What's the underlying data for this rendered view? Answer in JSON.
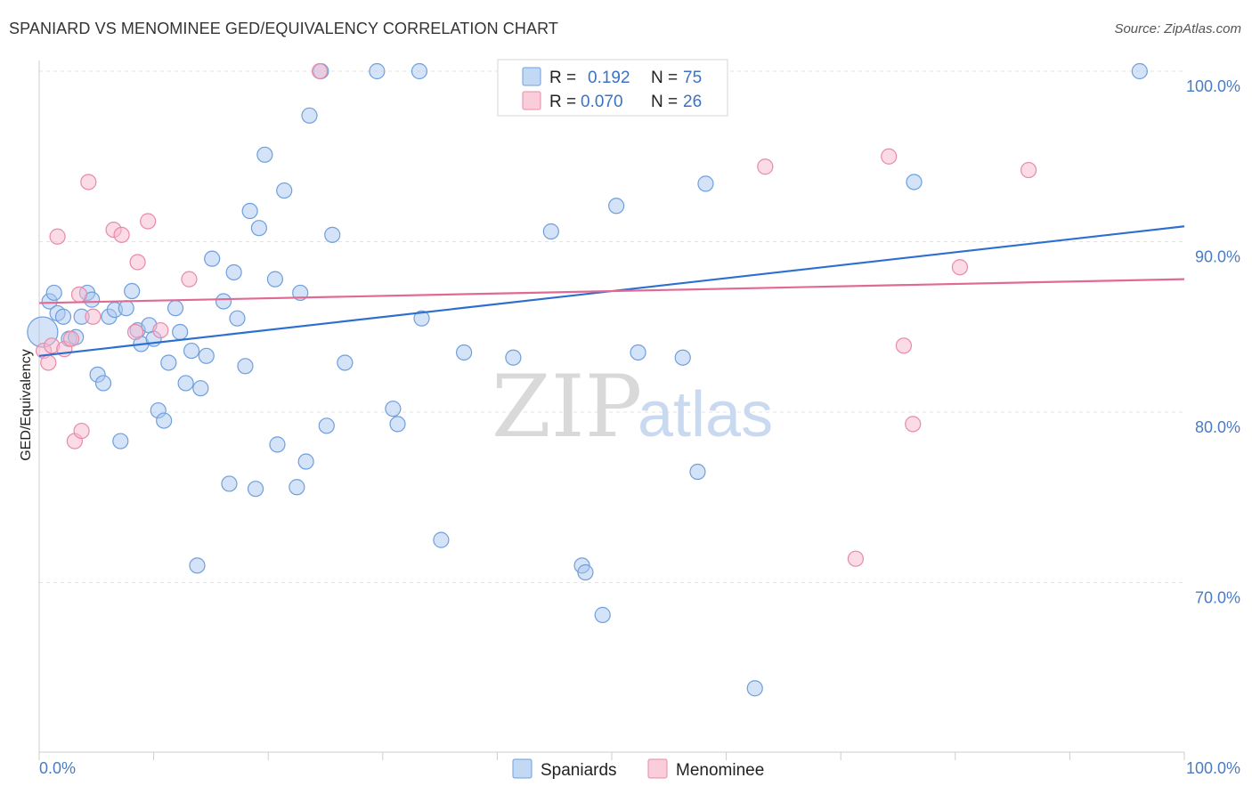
{
  "title": "SPANIARD VS MENOMINEE GED/EQUIVALENCY CORRELATION CHART",
  "source": "Source: ZipAtlas.com",
  "watermark": {
    "zip": "ZIP",
    "atlas": "atlas"
  },
  "colors": {
    "spaniards_fill": "#a9c8f0",
    "spaniards_stroke": "#6f9fdc",
    "spaniards_line": "#2c6fd0",
    "menominee_fill": "#f7b8cb",
    "menominee_stroke": "#e88aa8",
    "menominee_line": "#e06a94",
    "tick_label": "#4a7cc4",
    "grid": "#e3e3e3"
  },
  "legend": {
    "rows": [
      {
        "r_label": "R =",
        "r_value": "0.192",
        "n_label": "N =",
        "n_value": "75"
      },
      {
        "r_label": "R =",
        "r_value": "0.070",
        "n_label": "N =",
        "n_value": "26"
      }
    ]
  },
  "bottom_legend": [
    "Spaniards",
    "Menominee"
  ],
  "chart_data": {
    "type": "scatter",
    "title": "SPANIARD VS MENOMINEE GED/EQUIVALENCY CORRELATION CHART",
    "xlabel": "",
    "ylabel": "GED/Equivalency",
    "xlim": [
      0,
      100
    ],
    "ylim": [
      60,
      101
    ],
    "x_tick_labels": [
      {
        "value": 0,
        "label": "0.0%"
      },
      {
        "value": 100,
        "label": "100.0%"
      }
    ],
    "y_tick_labels": [
      {
        "value": 100,
        "label": "100.0%"
      },
      {
        "value": 90,
        "label": "90.0%"
      },
      {
        "value": 80,
        "label": "80.0%"
      },
      {
        "value": 70,
        "label": "70.0%"
      }
    ],
    "grid": true,
    "legend_position": "top-center",
    "series": [
      {
        "name": "Spaniards",
        "r": 0.192,
        "n": 75,
        "trend": {
          "x": [
            0,
            100
          ],
          "y": [
            83.3,
            90.9
          ]
        },
        "points": [
          [
            0.3,
            84.7
          ],
          [
            0.9,
            86.5
          ],
          [
            1.3,
            87.0
          ],
          [
            1.6,
            85.8
          ],
          [
            2.1,
            85.6
          ],
          [
            2.6,
            84.3
          ],
          [
            3.2,
            84.4
          ],
          [
            3.7,
            85.6
          ],
          [
            4.2,
            87.0
          ],
          [
            4.6,
            86.6
          ],
          [
            5.1,
            82.2
          ],
          [
            5.6,
            81.7
          ],
          [
            6.1,
            85.6
          ],
          [
            6.6,
            86.0
          ],
          [
            7.1,
            78.3
          ],
          [
            7.6,
            86.1
          ],
          [
            8.1,
            87.1
          ],
          [
            8.6,
            84.8
          ],
          [
            8.9,
            84.0
          ],
          [
            9.6,
            85.1
          ],
          [
            10.0,
            84.3
          ],
          [
            10.4,
            80.1
          ],
          [
            10.9,
            79.5
          ],
          [
            11.3,
            82.9
          ],
          [
            11.9,
            86.1
          ],
          [
            12.3,
            84.7
          ],
          [
            12.8,
            81.7
          ],
          [
            13.3,
            83.6
          ],
          [
            13.8,
            71.0
          ],
          [
            14.1,
            81.4
          ],
          [
            14.6,
            83.3
          ],
          [
            15.1,
            89.0
          ],
          [
            16.1,
            86.5
          ],
          [
            16.6,
            75.8
          ],
          [
            17.0,
            88.2
          ],
          [
            17.3,
            85.5
          ],
          [
            18.0,
            82.7
          ],
          [
            18.4,
            91.8
          ],
          [
            18.9,
            75.5
          ],
          [
            19.2,
            90.8
          ],
          [
            19.7,
            95.1
          ],
          [
            20.6,
            87.8
          ],
          [
            20.8,
            78.1
          ],
          [
            21.4,
            93.0
          ],
          [
            22.5,
            75.6
          ],
          [
            22.8,
            87.0
          ],
          [
            23.3,
            77.1
          ],
          [
            23.6,
            97.4
          ],
          [
            24.6,
            100.0
          ],
          [
            25.1,
            79.2
          ],
          [
            25.6,
            90.4
          ],
          [
            26.7,
            82.9
          ],
          [
            29.5,
            100.0
          ],
          [
            30.9,
            80.2
          ],
          [
            31.3,
            79.3
          ],
          [
            33.2,
            100.0
          ],
          [
            33.4,
            85.5
          ],
          [
            35.1,
            72.5
          ],
          [
            37.1,
            83.5
          ],
          [
            40.8,
            100.0
          ],
          [
            41.4,
            83.2
          ],
          [
            44.3,
            98.9
          ],
          [
            44.7,
            90.6
          ],
          [
            47.4,
            71.0
          ],
          [
            47.7,
            70.6
          ],
          [
            49.2,
            68.1
          ],
          [
            49.6,
            100.0
          ],
          [
            50.4,
            92.1
          ],
          [
            52.3,
            83.5
          ],
          [
            56.2,
            83.2
          ],
          [
            57.5,
            76.5
          ],
          [
            58.2,
            93.4
          ],
          [
            62.5,
            63.8
          ],
          [
            76.4,
            93.5
          ],
          [
            96.1,
            100.0
          ]
        ]
      },
      {
        "name": "Menominee",
        "r": 0.07,
        "n": 26,
        "trend": {
          "x": [
            0,
            100
          ],
          "y": [
            86.4,
            87.8
          ]
        },
        "points": [
          [
            0.4,
            83.6
          ],
          [
            0.8,
            82.9
          ],
          [
            1.1,
            83.9
          ],
          [
            1.6,
            90.3
          ],
          [
            2.2,
            83.7
          ],
          [
            2.8,
            84.3
          ],
          [
            3.1,
            78.3
          ],
          [
            3.5,
            86.9
          ],
          [
            3.7,
            78.9
          ],
          [
            4.3,
            93.5
          ],
          [
            4.7,
            85.6
          ],
          [
            6.5,
            90.7
          ],
          [
            7.2,
            90.4
          ],
          [
            8.4,
            84.7
          ],
          [
            8.6,
            88.8
          ],
          [
            9.5,
            91.2
          ],
          [
            10.6,
            84.8
          ],
          [
            13.1,
            87.8
          ],
          [
            24.5,
            100.0
          ],
          [
            63.4,
            94.4
          ],
          [
            71.3,
            71.4
          ],
          [
            74.2,
            95.0
          ],
          [
            75.5,
            83.9
          ],
          [
            76.3,
            79.3
          ],
          [
            80.4,
            88.5
          ],
          [
            86.4,
            94.2
          ]
        ]
      }
    ]
  }
}
